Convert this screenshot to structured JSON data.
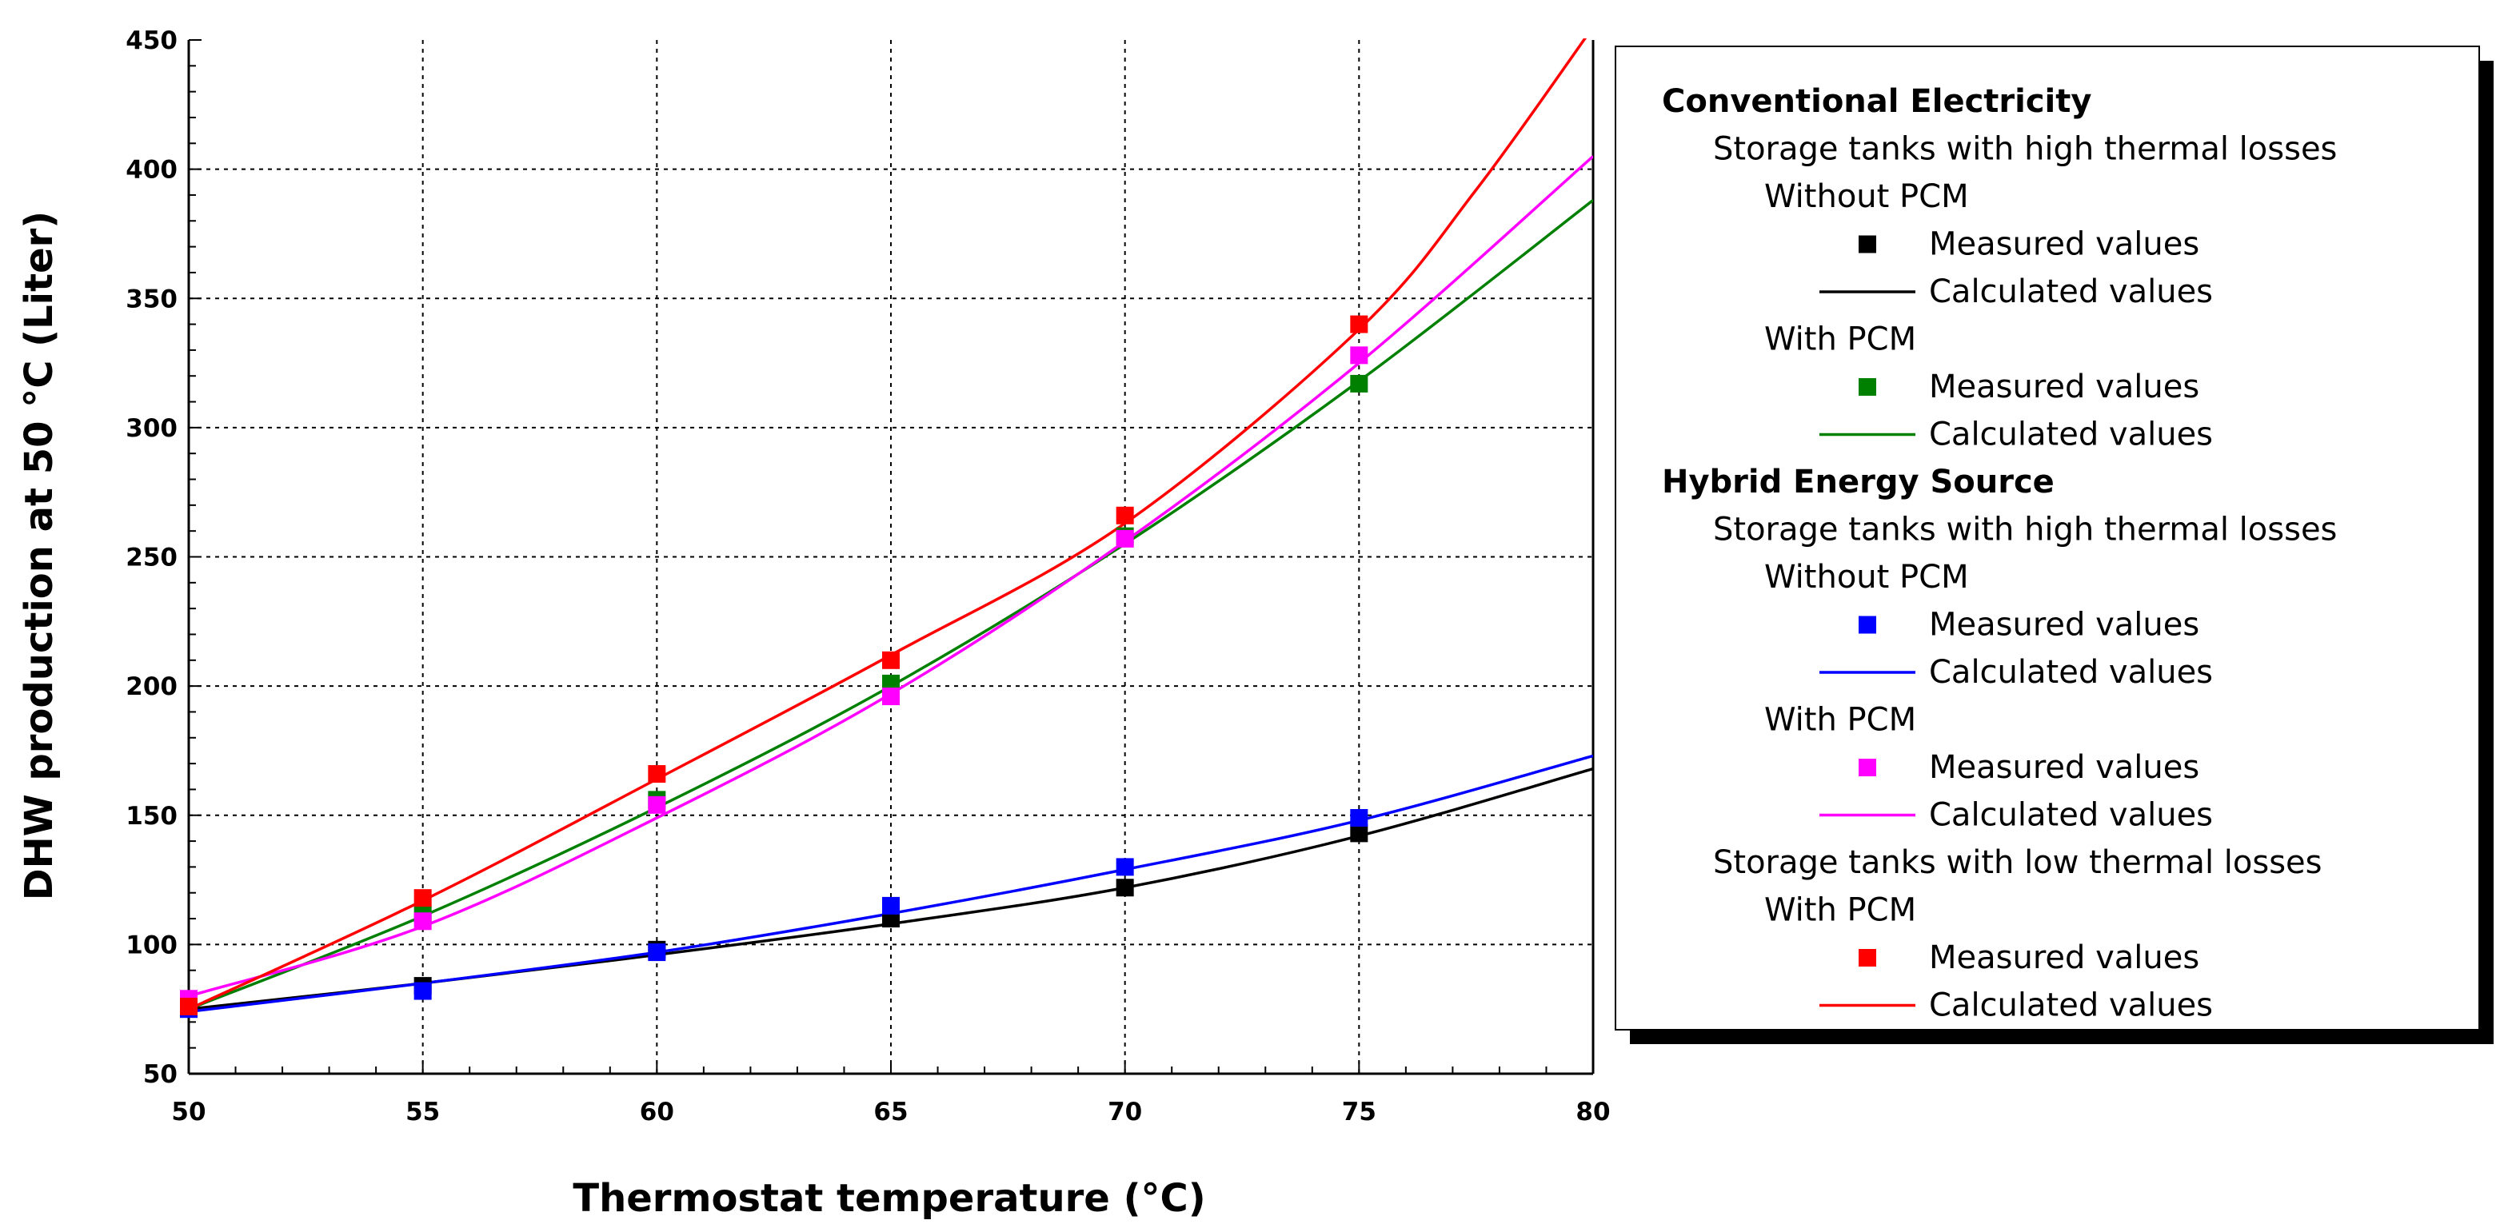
{
  "chart_data": {
    "type": "line",
    "title": "",
    "xlabel": "Thermostat temperature (°C)",
    "ylabel": "DHW production at 50 °C (Liter)",
    "xlim": [
      50,
      80
    ],
    "ylim": [
      50,
      450
    ],
    "xticks": [
      50,
      55,
      60,
      65,
      70,
      75,
      80
    ],
    "yticks": [
      50,
      100,
      150,
      200,
      250,
      300,
      350,
      400,
      450
    ],
    "xtick_labels": [
      "50",
      "55",
      "60",
      "65",
      "70",
      "75",
      "80"
    ],
    "ytick_labels": [
      "50",
      "100",
      "150",
      "200",
      "250",
      "300",
      "350",
      "400",
      "450"
    ],
    "grid": true,
    "legend_position": "right",
    "series": [
      {
        "key": "conv-without",
        "color": "#000000",
        "measured": {
          "x": [
            55,
            60,
            65,
            70,
            75
          ],
          "y": [
            84,
            98,
            110,
            122,
            143
          ]
        },
        "calculated": {
          "x": [
            50,
            55,
            60,
            65,
            70,
            75,
            80
          ],
          "y": [
            75,
            85,
            96,
            108,
            122,
            142,
            168
          ]
        }
      },
      {
        "key": "conv-with",
        "color": "#008000",
        "measured": {
          "x": [
            55,
            60,
            65,
            70,
            75
          ],
          "y": [
            112,
            156,
            201,
            258,
            317
          ]
        },
        "calculated": {
          "x": [
            50,
            55,
            60,
            65,
            70,
            75,
            80
          ],
          "y": [
            75,
            111,
            153,
            200,
            255,
            318,
            388
          ]
        }
      },
      {
        "key": "hybrid-without",
        "color": "#0000ff",
        "measured": {
          "x": [
            50,
            55,
            60,
            65,
            70,
            75
          ],
          "y": [
            75,
            82,
            97,
            115,
            130,
            149
          ]
        },
        "calculated": {
          "x": [
            50,
            55,
            60,
            65,
            70,
            75,
            80
          ],
          "y": [
            74,
            85,
            97,
            112,
            129,
            148,
            173
          ]
        }
      },
      {
        "key": "hybrid-with",
        "color": "#ff00ff",
        "measured": {
          "x": [
            50,
            55,
            60,
            65,
            70,
            75
          ],
          "y": [
            79,
            109,
            154,
            196,
            257,
            328
          ]
        },
        "calculated": {
          "x": [
            50,
            55,
            60,
            65,
            70,
            75,
            80
          ],
          "y": [
            80,
            107,
            149,
            197,
            256,
            325,
            405
          ]
        }
      },
      {
        "key": "hybrid-low",
        "color": "#ff0000",
        "measured": {
          "x": [
            50,
            55,
            60,
            65,
            70,
            75
          ],
          "y": [
            76,
            118,
            166,
            210,
            266,
            340
          ]
        },
        "calculated": {
          "x": [
            50,
            55,
            60,
            65,
            70,
            75,
            77.5,
            80
          ],
          "y": [
            75,
            117,
            164,
            212,
            263,
            338,
            392,
            455
          ]
        }
      }
    ],
    "legend": {
      "groups": [
        {
          "label": "Conventional Electricity",
          "tanks": [
            {
              "label": "Storage tanks with high thermal losses",
              "variants": [
                {
                  "label": "Without PCM",
                  "series": "conv-without",
                  "measured": "Measured values",
                  "calculated": "Calculated values"
                },
                {
                  "label": "With PCM",
                  "series": "conv-with",
                  "measured": "Measured values",
                  "calculated": "Calculated values"
                }
              ]
            }
          ]
        },
        {
          "label": "Hybrid Energy Source",
          "tanks": [
            {
              "label": "Storage tanks with high thermal losses",
              "variants": [
                {
                  "label": "Without PCM",
                  "series": "hybrid-without",
                  "measured": "Measured values",
                  "calculated": "Calculated values"
                },
                {
                  "label": "With PCM",
                  "series": "hybrid-with",
                  "measured": "Measured values",
                  "calculated": "Calculated values"
                }
              ]
            },
            {
              "label": "Storage tanks with low thermal losses",
              "variants": [
                {
                  "label": "With PCM",
                  "series": "hybrid-low",
                  "measured": "Measured values",
                  "calculated": "Calculated values"
                }
              ]
            }
          ]
        }
      ]
    }
  }
}
